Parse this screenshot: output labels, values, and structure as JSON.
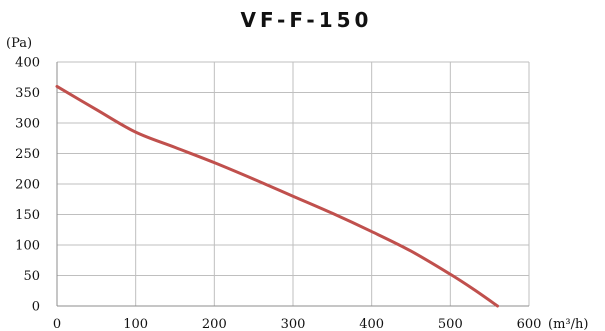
{
  "chart_data": {
    "type": "line",
    "title": "VF-F-150",
    "xlabel": "(m³/h)",
    "ylabel": "(Pa)",
    "xlim": [
      0,
      600
    ],
    "ylim": [
      0,
      400
    ],
    "xticks": [
      0,
      100,
      200,
      300,
      400,
      500,
      600
    ],
    "yticks": [
      0,
      50,
      100,
      150,
      200,
      250,
      300,
      350,
      400
    ],
    "grid": true,
    "series": [
      {
        "color": "#c0504d",
        "x": [
          0,
          50,
          100,
          150,
          200,
          250,
          300,
          350,
          400,
          450,
          500,
          530,
          560
        ],
        "y": [
          360,
          322,
          285,
          260,
          235,
          208,
          180,
          152,
          122,
          90,
          52,
          27,
          0
        ]
      }
    ]
  }
}
